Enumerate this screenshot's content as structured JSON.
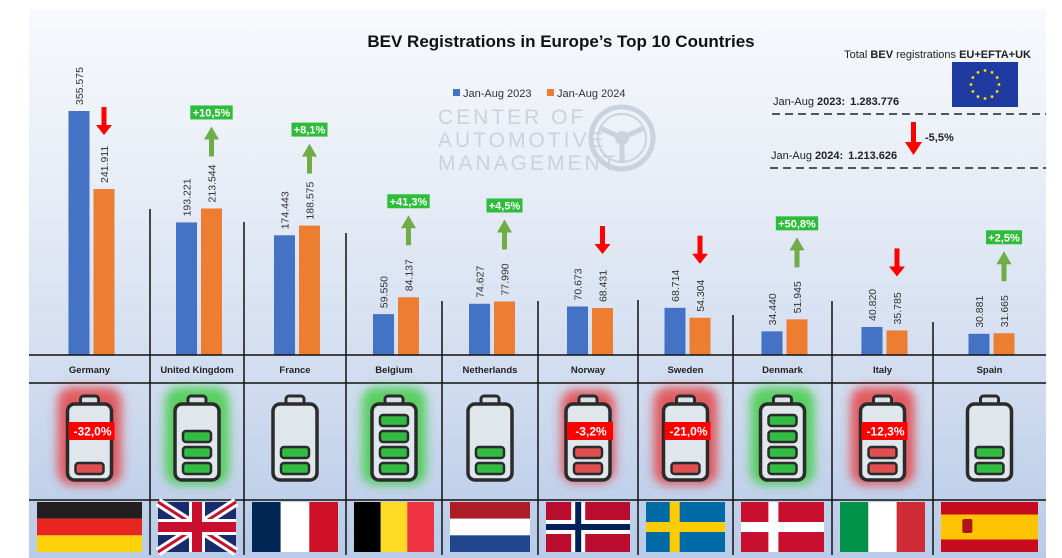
{
  "chart_data": {
    "type": "bar",
    "title": "BEV Registrations in Europe’s Top 10 Countries",
    "xlabel": "",
    "ylabel": "",
    "ylim": [
      0,
      360000
    ],
    "grid": false,
    "legend_position": "top-center",
    "categories": [
      "Germany",
      "United Kingdom",
      "France",
      "Belgium",
      "Netherlands",
      "Norway",
      "Sweden",
      "Denmark",
      "Italy",
      "Spain"
    ],
    "series": [
      {
        "name": "Jan-Aug 2023",
        "color": "#4472c4",
        "values": [
          355575,
          193221,
          174443,
          59550,
          74627,
          70673,
          68714,
          34440,
          40820,
          30881
        ],
        "labels": [
          "355.575",
          "193.221",
          "174.443",
          "59.550",
          "74.627",
          "70.673",
          "68.714",
          "34.440",
          "40.820",
          "30.881"
        ]
      },
      {
        "name": "Jan-Aug 2024",
        "color": "#ed7d31",
        "values": [
          241911,
          213544,
          188575,
          84137,
          77990,
          68431,
          54304,
          51945,
          35785,
          31665
        ],
        "labels": [
          "241.911",
          "213.544",
          "188.575",
          "84.137",
          "77.990",
          "68.431",
          "54.304",
          "51.945",
          "35.785",
          "31.665"
        ]
      }
    ],
    "changes": [
      {
        "country": "Germany",
        "direction": "down",
        "label": "-32,0%",
        "battery_bars": 1
      },
      {
        "country": "United Kingdom",
        "direction": "up",
        "label": "+10,5%",
        "battery_bars": 3
      },
      {
        "country": "France",
        "direction": "up",
        "label": "+8,1%",
        "battery_bars": 2
      },
      {
        "country": "Belgium",
        "direction": "up",
        "label": "+41,3%",
        "battery_bars": 4
      },
      {
        "country": "Netherlands",
        "direction": "up",
        "label": "+4,5%",
        "battery_bars": 2
      },
      {
        "country": "Norway",
        "direction": "down",
        "label": "-3,2%",
        "battery_bars": 2
      },
      {
        "country": "Sweden",
        "direction": "down",
        "label": "-21,0%",
        "battery_bars": 1
      },
      {
        "country": "Denmark",
        "direction": "up",
        "label": "+50,8%",
        "battery_bars": 4
      },
      {
        "country": "Italy",
        "direction": "down",
        "label": "-12,3%",
        "battery_bars": 2
      },
      {
        "country": "Spain",
        "direction": "up",
        "label": "+2,5%",
        "battery_bars": 2
      }
    ],
    "annotations": {
      "total_heading_prefix": "Total ",
      "total_heading_bold1": "BEV",
      "total_heading_mid": " registrations ",
      "total_heading_bold2": "EU+EFTA+UK",
      "total_2023_prefix": "Jan-Aug ",
      "total_2023_year": "2023:",
      "total_2023_value": "1.283.776",
      "total_2024_prefix": "Jan-Aug ",
      "total_2024_year": "2024:",
      "total_2024_value": "1.213.626",
      "total_change": "-5,5%",
      "watermark_lines": [
        "CENTER OF",
        "AUTOMOTIVE",
        "MANAGEMENT"
      ]
    }
  },
  "colors": {
    "up": "#2dbd3a",
    "up_arrow": "#70ad47",
    "down": "#ff0000",
    "bar_2023": "#4472c4",
    "bar_2024": "#ed7d31"
  },
  "flags": [
    "germany-flag",
    "uk-flag",
    "france-flag",
    "belgium-flag",
    "netherlands-flag",
    "norway-flag",
    "sweden-flag",
    "denmark-flag",
    "italy-flag",
    "spain-flag"
  ]
}
